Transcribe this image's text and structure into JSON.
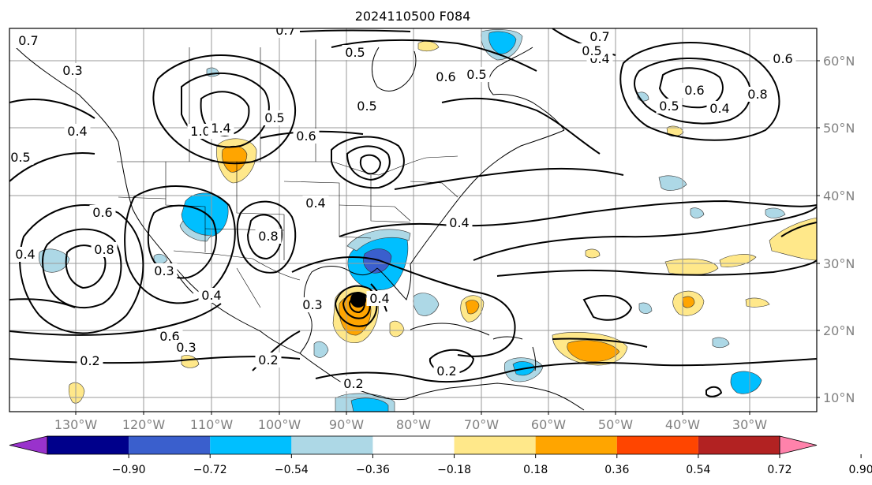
{
  "title": "2024110500 F084",
  "lon_labels": [
    "130°W",
    "120°W",
    "110°W",
    "100°W",
    "90°W",
    "80°W",
    "70°W",
    "60°W",
    "50°W",
    "40°W",
    "30°W"
  ],
  "lat_labels": [
    "60°N",
    "50°N",
    "40°N",
    "30°N",
    "20°N",
    "10°N"
  ],
  "colorbar": {
    "ticks": [
      "−0.90",
      "−0.72",
      "−0.54",
      "−0.36",
      "−0.18",
      "0.18",
      "0.36",
      "0.54",
      "0.72",
      "0.90"
    ],
    "colors": [
      "#9932cc",
      "#00008b",
      "#3a5fcd",
      "#00bfff",
      "#add8e6",
      "#ffffff",
      "#ffe88a",
      "#ffa500",
      "#ff4500",
      "#b22222",
      "#ff82ab"
    ],
    "extend": "both"
  },
  "contour_labels": [
    "0.7",
    "0.5",
    "0.7",
    "0.5",
    "0.6",
    "0.5",
    "0.4",
    "0.7",
    "0.4",
    "0.8",
    "0.3",
    "0.4",
    "0.5",
    "1.0",
    "1.4",
    "0.5",
    "0.6",
    "0.5",
    "0.6",
    "0.4",
    "0.5",
    "0.6",
    "0.4",
    "0.6",
    "0.8",
    "0.3",
    "0.4",
    "0.8",
    "0.3",
    "0.4",
    "0.6",
    "0.3",
    "0.2",
    "0.2",
    "0.2",
    "0.2",
    "0.4"
  ],
  "icons": {
    "storm_center": "filled-black-circle"
  }
}
